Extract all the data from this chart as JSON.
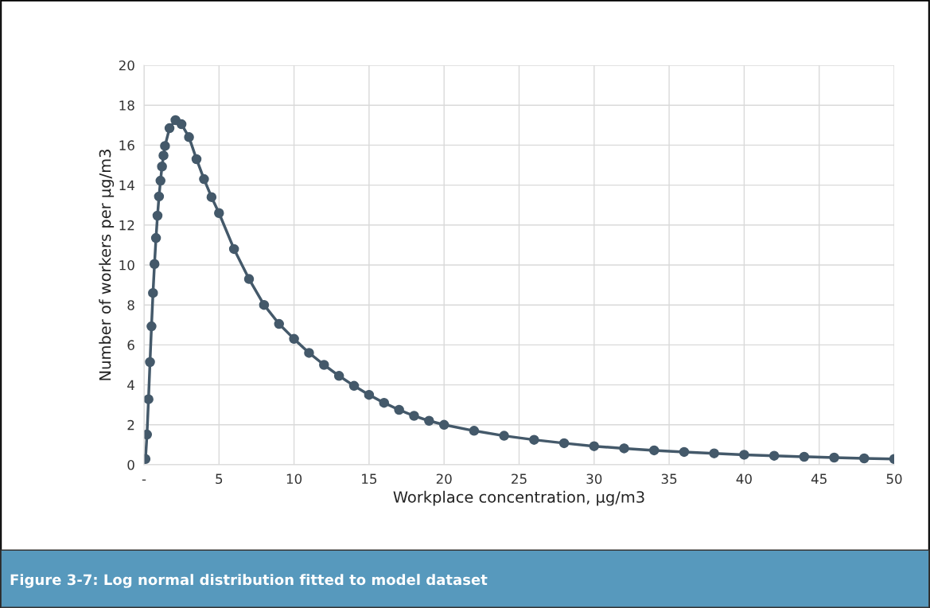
{
  "chart_data": {
    "type": "line",
    "xlabel": "Workplace concentration, µg/m3",
    "ylabel": "Number of workers per µg/m3",
    "annotations": [
      "Figure 3-7: Log normal distribution fitted to model dataset"
    ],
    "marker": "circle",
    "grid": true,
    "xlim": [
      0,
      50
    ],
    "xticks": [
      {
        "value": 0,
        "label": "-"
      },
      5,
      10,
      15,
      20,
      25,
      30,
      35,
      40,
      45,
      50
    ],
    "ylim": [
      0,
      20
    ],
    "yticks": [
      0,
      2,
      4,
      6,
      8,
      10,
      12,
      14,
      16,
      18,
      20
    ],
    "series": [
      {
        "color": "#44596a",
        "x": [
          0.1,
          0.2,
          0.3,
          0.4,
          0.5,
          0.6,
          0.7,
          0.8,
          0.9,
          1.0,
          1.1,
          1.2,
          1.3,
          1.4,
          1.7,
          2.1,
          2.5,
          3.0,
          3.5,
          4.0,
          4.5,
          5,
          6,
          7,
          8,
          9,
          10,
          11,
          12,
          13,
          14,
          15,
          16,
          17,
          18,
          19,
          20,
          22,
          24,
          26,
          28,
          30,
          32,
          34,
          36,
          38,
          40,
          42,
          44,
          46,
          48,
          50
        ],
        "values": [
          0.29,
          1.51,
          3.28,
          5.14,
          6.93,
          8.6,
          10.05,
          11.35,
          12.47,
          13.43,
          14.22,
          14.93,
          15.48,
          15.96,
          16.85,
          17.25,
          17.05,
          16.4,
          15.3,
          14.3,
          13.4,
          12.6,
          10.8,
          9.3,
          8.0,
          7.05,
          6.3,
          5.6,
          5.0,
          4.45,
          3.95,
          3.5,
          3.1,
          2.75,
          2.45,
          2.2,
          2.0,
          1.7,
          1.45,
          1.25,
          1.08,
          0.93,
          0.82,
          0.72,
          0.64,
          0.57,
          0.5,
          0.45,
          0.4,
          0.36,
          0.32,
          0.29
        ]
      }
    ]
  }
}
